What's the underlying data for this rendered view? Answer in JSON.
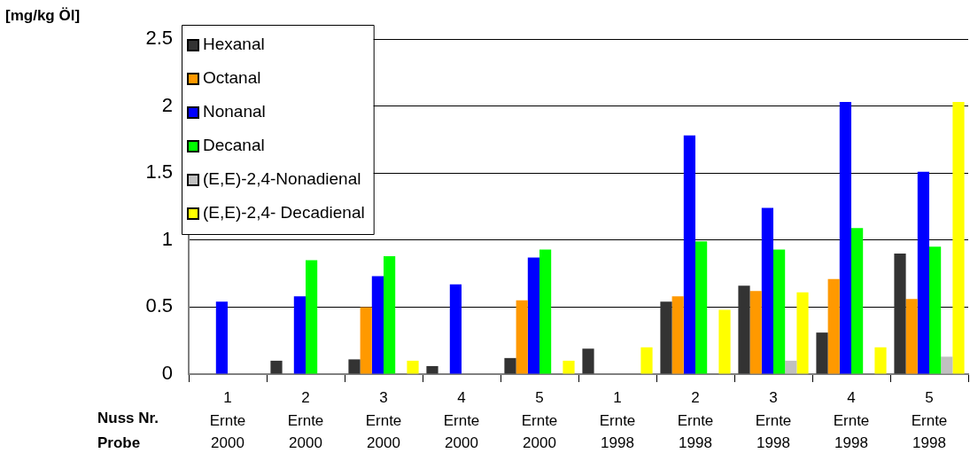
{
  "chart_data": {
    "type": "bar",
    "ylabel": "[mg/kg Öl]",
    "annotations": [
      "Nuss Nr.",
      "Probe"
    ],
    "categories": [
      "1\nErnte\n2000",
      "2\nErnte\n2000",
      "3\nErnte\n2000",
      "4\nErnte\n2000",
      "5\nErnte\n2000",
      "1\nErnte\n1998",
      "2\nErnte\n1998",
      "3\nErnte\n1998",
      "4\nErnte\n1998",
      "5\nErnte\n1998"
    ],
    "series": [
      {
        "name": "Hexanal",
        "color": "#333333",
        "values": [
          null,
          0.1,
          0.11,
          0.06,
          0.12,
          0.19,
          0.54,
          0.66,
          0.31,
          0.9
        ]
      },
      {
        "name": "Octanal",
        "color": "#ff9900",
        "values": [
          null,
          null,
          0.5,
          null,
          0.55,
          null,
          0.58,
          0.62,
          0.71,
          0.56
        ]
      },
      {
        "name": "Nonanal",
        "color": "#0000ff",
        "values": [
          0.54,
          0.58,
          0.73,
          0.67,
          0.87,
          null,
          1.78,
          1.24,
          2.03,
          1.51
        ]
      },
      {
        "name": "Decanal",
        "color": "#00ff00",
        "values": [
          null,
          0.85,
          0.88,
          null,
          0.93,
          null,
          0.99,
          0.93,
          1.09,
          0.95
        ]
      },
      {
        "name": "(E,E)-2,4-Nonadienal",
        "color": "#c0c0c0",
        "values": [
          null,
          null,
          null,
          null,
          null,
          null,
          null,
          0.1,
          null,
          0.13
        ]
      },
      {
        "name": "(E,E)-2,4- Decadienal",
        "color": "#ffff00",
        "values": [
          null,
          null,
          0.1,
          null,
          0.1,
          0.2,
          0.48,
          0.61,
          0.2,
          2.03
        ]
      }
    ],
    "ylim": [
      0,
      2.5
    ],
    "yticks": [
      0,
      0.5,
      1,
      1.5,
      2,
      2.5
    ],
    "grid": "y",
    "legend": "top left"
  }
}
